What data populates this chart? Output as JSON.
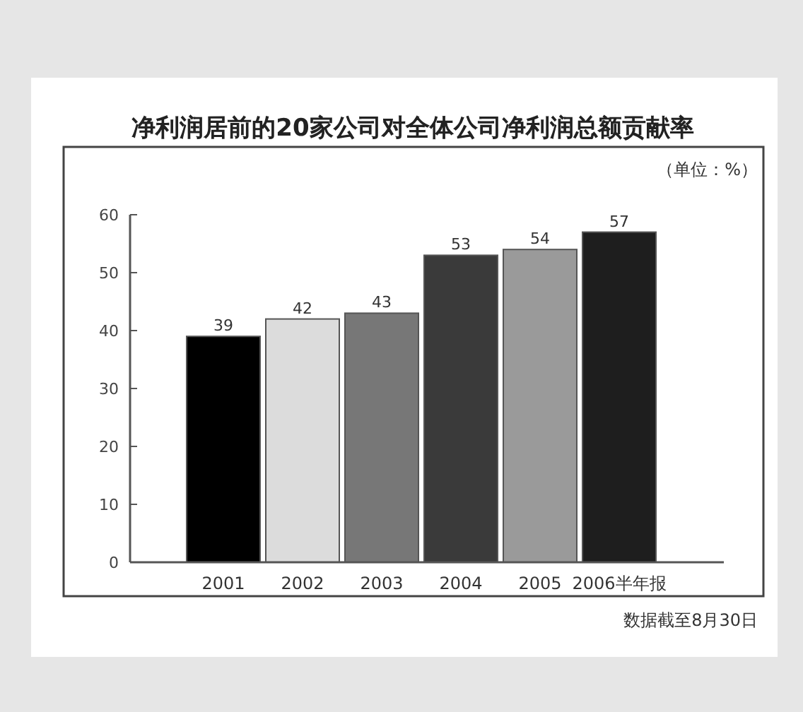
{
  "chart_data": {
    "type": "bar",
    "title": "净利润居前的20家公司对全体公司净利润总额贡献率",
    "subtitle": "（单位：%）",
    "categories": [
      "2001",
      "2002",
      "2003",
      "2004",
      "2005",
      "2006半年报"
    ],
    "values": [
      39,
      42,
      43,
      53,
      54,
      57
    ],
    "colors": [
      "#000000",
      "#dcdcdc",
      "#777777",
      "#3a3a3a",
      "#9a9a9a",
      "#1e1e1e"
    ],
    "ylim": [
      0,
      60
    ],
    "yticks": [
      0,
      10,
      20,
      30,
      40,
      50,
      60
    ],
    "data_labels": true,
    "annotations": [
      "数据截至8月30日"
    ]
  }
}
